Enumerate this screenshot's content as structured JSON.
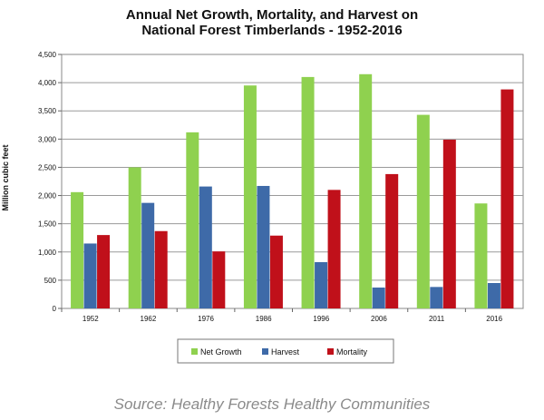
{
  "chart_data": {
    "type": "bar",
    "title": "Annual Net Growth, Mortality, and Harvest on\nNational Forest Timberlands - 1952-2016",
    "xlabel": "",
    "ylabel": "Million cubic feet",
    "ylim": [
      0,
      4500
    ],
    "yticks": [
      "0",
      "500",
      "1,000",
      "1,500",
      "2,000",
      "2,500",
      "3,000",
      "3,500",
      "4,000",
      "4,500"
    ],
    "ytick_values": [
      0,
      500,
      1000,
      1500,
      2000,
      2500,
      3000,
      3500,
      4000,
      4500
    ],
    "grid": true,
    "legend_position": "bottom",
    "categories": [
      "1952",
      "1962",
      "1976",
      "1986",
      "1996",
      "2006",
      "2011",
      "2016"
    ],
    "series": [
      {
        "name": "Net Growth",
        "color": "#8fd14f",
        "values": [
          2060,
          2500,
          3120,
          3950,
          4100,
          4150,
          3430,
          1860
        ]
      },
      {
        "name": "Harvest",
        "color": "#3e6aa8",
        "values": [
          1150,
          1870,
          2160,
          2170,
          820,
          370,
          380,
          450
        ]
      },
      {
        "name": "Mortality",
        "color": "#c0101a",
        "values": [
          1300,
          1370,
          1010,
          1290,
          2100,
          2380,
          2990,
          3880
        ]
      }
    ]
  },
  "source": "Source: Healthy Forests Healthy Communities"
}
